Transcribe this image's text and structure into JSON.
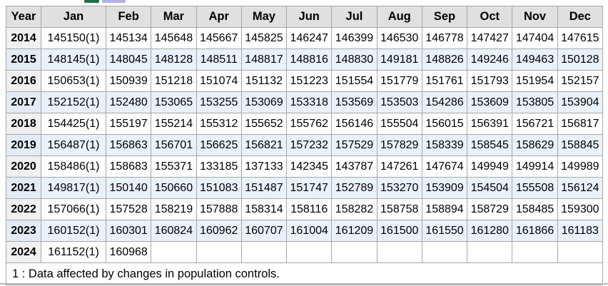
{
  "toolbar": {
    "icons": [
      {
        "name": "excel-download-icon",
        "color": "#1d6f42",
        "note": "cut off at top edge"
      },
      {
        "name": "table-chart-icon",
        "color": "#b3b3da",
        "note": "cut off at top edge"
      }
    ]
  },
  "table": {
    "columns": [
      "Year",
      "Jan",
      "Feb",
      "Mar",
      "Apr",
      "May",
      "Jun",
      "Jul",
      "Aug",
      "Sep",
      "Oct",
      "Nov",
      "Dec"
    ],
    "rows": [
      {
        "year": "2014",
        "values": [
          "145150(1)",
          "145134",
          "145648",
          "145667",
          "145825",
          "146247",
          "146399",
          "146530",
          "146778",
          "147427",
          "147404",
          "147615"
        ]
      },
      {
        "year": "2015",
        "values": [
          "148145(1)",
          "148045",
          "148128",
          "148511",
          "148817",
          "148816",
          "148830",
          "149181",
          "148826",
          "149246",
          "149463",
          "150128"
        ]
      },
      {
        "year": "2016",
        "values": [
          "150653(1)",
          "150939",
          "151218",
          "151074",
          "151132",
          "151223",
          "151554",
          "151779",
          "151761",
          "151793",
          "151954",
          "152157"
        ]
      },
      {
        "year": "2017",
        "values": [
          "152152(1)",
          "152480",
          "153065",
          "153255",
          "153069",
          "153318",
          "153569",
          "153503",
          "154286",
          "153609",
          "153805",
          "153904"
        ]
      },
      {
        "year": "2018",
        "values": [
          "154425(1)",
          "155197",
          "155214",
          "155312",
          "155652",
          "155762",
          "156146",
          "155504",
          "156015",
          "156391",
          "156721",
          "156817"
        ]
      },
      {
        "year": "2019",
        "values": [
          "156487(1)",
          "156863",
          "156701",
          "156625",
          "156821",
          "157232",
          "157529",
          "157829",
          "158339",
          "158545",
          "158629",
          "158845"
        ]
      },
      {
        "year": "2020",
        "values": [
          "158486(1)",
          "158683",
          "155371",
          "133185",
          "137133",
          "142345",
          "143787",
          "147261",
          "147674",
          "149949",
          "149914",
          "149989"
        ]
      },
      {
        "year": "2021",
        "values": [
          "149817(1)",
          "150140",
          "150660",
          "151083",
          "151487",
          "151747",
          "152789",
          "153270",
          "153909",
          "154504",
          "155508",
          "156124"
        ]
      },
      {
        "year": "2022",
        "values": [
          "157066(1)",
          "157528",
          "158219",
          "157888",
          "158314",
          "158116",
          "158282",
          "158758",
          "158894",
          "158729",
          "158485",
          "159300"
        ]
      },
      {
        "year": "2023",
        "values": [
          "160152(1)",
          "160301",
          "160824",
          "160962",
          "160707",
          "161004",
          "161209",
          "161500",
          "161550",
          "161280",
          "161866",
          "161183"
        ]
      },
      {
        "year": "2024",
        "values": [
          "161152(1)",
          "160968",
          "",
          "",
          "",
          "",
          "",
          "",
          "",
          "",
          "",
          ""
        ]
      }
    ],
    "footnote": "1 : Data affected by changes in population controls."
  },
  "colors": {
    "header_bg": "#e0e0e0",
    "stripe_bg": "#e9f1fa",
    "year_cell_bg": "#f0f0f0",
    "year_cell_stripe_bg": "#e3ecf6",
    "cell_border": "#a6a6a6",
    "outer_border": "#7d7d7d",
    "bottom_divider": "#b5bab5",
    "excel_icon_green": "#1d6f42",
    "chart_icon_lavender": "#b3b3da"
  }
}
